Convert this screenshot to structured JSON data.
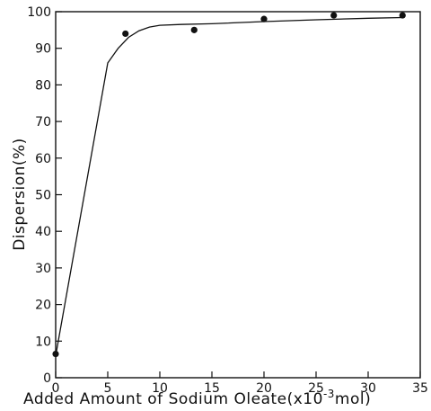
{
  "chart_data": {
    "type": "scatter",
    "xlabel_prefix": "Added Amount of Sodium Oleate(x10",
    "xlabel_exp": "-3",
    "xlabel_suffix": "mol)",
    "ylabel": "Dispersion(%)",
    "xlim": [
      0,
      35
    ],
    "ylim": [
      0,
      100
    ],
    "xticks": [
      0,
      5,
      10,
      15,
      20,
      25,
      30,
      35
    ],
    "yticks": [
      0,
      10,
      20,
      30,
      40,
      50,
      60,
      70,
      80,
      90,
      100
    ],
    "grid": false,
    "points": [
      {
        "x": 0,
        "y": 6.5
      },
      {
        "x": 6.7,
        "y": 94
      },
      {
        "x": 13.3,
        "y": 95
      },
      {
        "x": 20,
        "y": 98
      },
      {
        "x": 26.7,
        "y": 99
      },
      {
        "x": 33.3,
        "y": 99
      }
    ],
    "fit_curve": [
      [
        0,
        6
      ],
      [
        5,
        86
      ],
      [
        6,
        90
      ],
      [
        7,
        93
      ],
      [
        8,
        94.8
      ],
      [
        9,
        95.8
      ],
      [
        10,
        96.3
      ],
      [
        12,
        96.5
      ],
      [
        15,
        96.7
      ],
      [
        20,
        97.3
      ],
      [
        25,
        97.8
      ],
      [
        30,
        98.2
      ],
      [
        33.3,
        98.4
      ]
    ]
  }
}
